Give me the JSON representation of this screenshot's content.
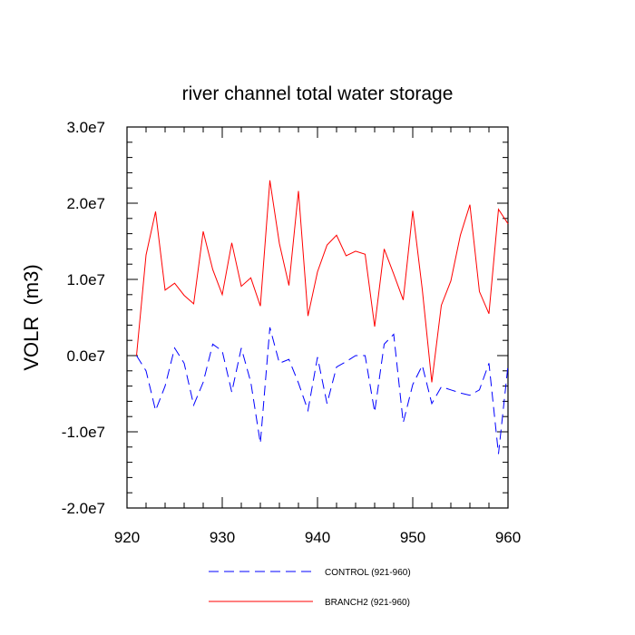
{
  "chart_data": {
    "type": "line",
    "title": "river channel total water storage",
    "xlabel": "",
    "ylabel": "VOLR  (m3)",
    "xlim": [
      921,
      960
    ],
    "ylim": [
      -20000000,
      30000000
    ],
    "x_ticks": [
      920,
      930,
      940,
      950,
      960
    ],
    "x_tick_labels": [
      "920",
      "930",
      "940",
      "950",
      "960"
    ],
    "y_ticks": [
      -20000000,
      -10000000,
      0,
      10000000,
      20000000,
      30000000
    ],
    "y_tick_labels": [
      "-2.0e7",
      "-1.0e7",
      "0.0e7",
      "1.0e7",
      "2.0e7",
      "3.0e7"
    ],
    "grid": false,
    "legend_position": "bottom",
    "x": [
      921,
      922,
      923,
      924,
      925,
      926,
      927,
      928,
      929,
      930,
      931,
      932,
      933,
      934,
      935,
      936,
      937,
      938,
      939,
      940,
      941,
      942,
      943,
      944,
      945,
      946,
      947,
      948,
      949,
      950,
      951,
      952,
      953,
      954,
      955,
      956,
      957,
      958,
      959,
      960
    ],
    "series": [
      {
        "name": "CONTROL (921-960)",
        "color": "#0000ff",
        "dash": "dashed",
        "values": [
          0,
          -2000000,
          -7200000,
          -4000000,
          1000000,
          -1000000,
          -6500000,
          -3500000,
          1500000,
          600000,
          -4800000,
          1000000,
          -3500000,
          -11500000,
          3700000,
          -1000000,
          -500000,
          -3600000,
          -7200000,
          -200000,
          -6300000,
          -1500000,
          -800000,
          0,
          0,
          -7400000,
          1500000,
          2800000,
          -8800000,
          -3800000,
          -1300000,
          -6300000,
          -4100000,
          -4500000,
          -4900000,
          -5200000,
          -4500000,
          -1000000,
          -12900000,
          -1300000
        ]
      },
      {
        "name": "BRANCH2 (921-960)",
        "color": "#ff0000",
        "dash": "solid",
        "values": [
          0,
          13200000,
          18900000,
          8600000,
          9500000,
          7900000,
          6800000,
          16300000,
          11300000,
          8000000,
          14800000,
          9100000,
          10200000,
          6500000,
          23000000,
          14700000,
          9200000,
          21600000,
          5200000,
          11000000,
          14500000,
          15800000,
          13100000,
          13700000,
          13300000,
          3800000,
          14000000,
          10700000,
          7300000,
          19000000,
          8700000,
          -3500000,
          6600000,
          9800000,
          15800000,
          19800000,
          8400000,
          5500000,
          19200000,
          17300000
        ]
      }
    ]
  }
}
